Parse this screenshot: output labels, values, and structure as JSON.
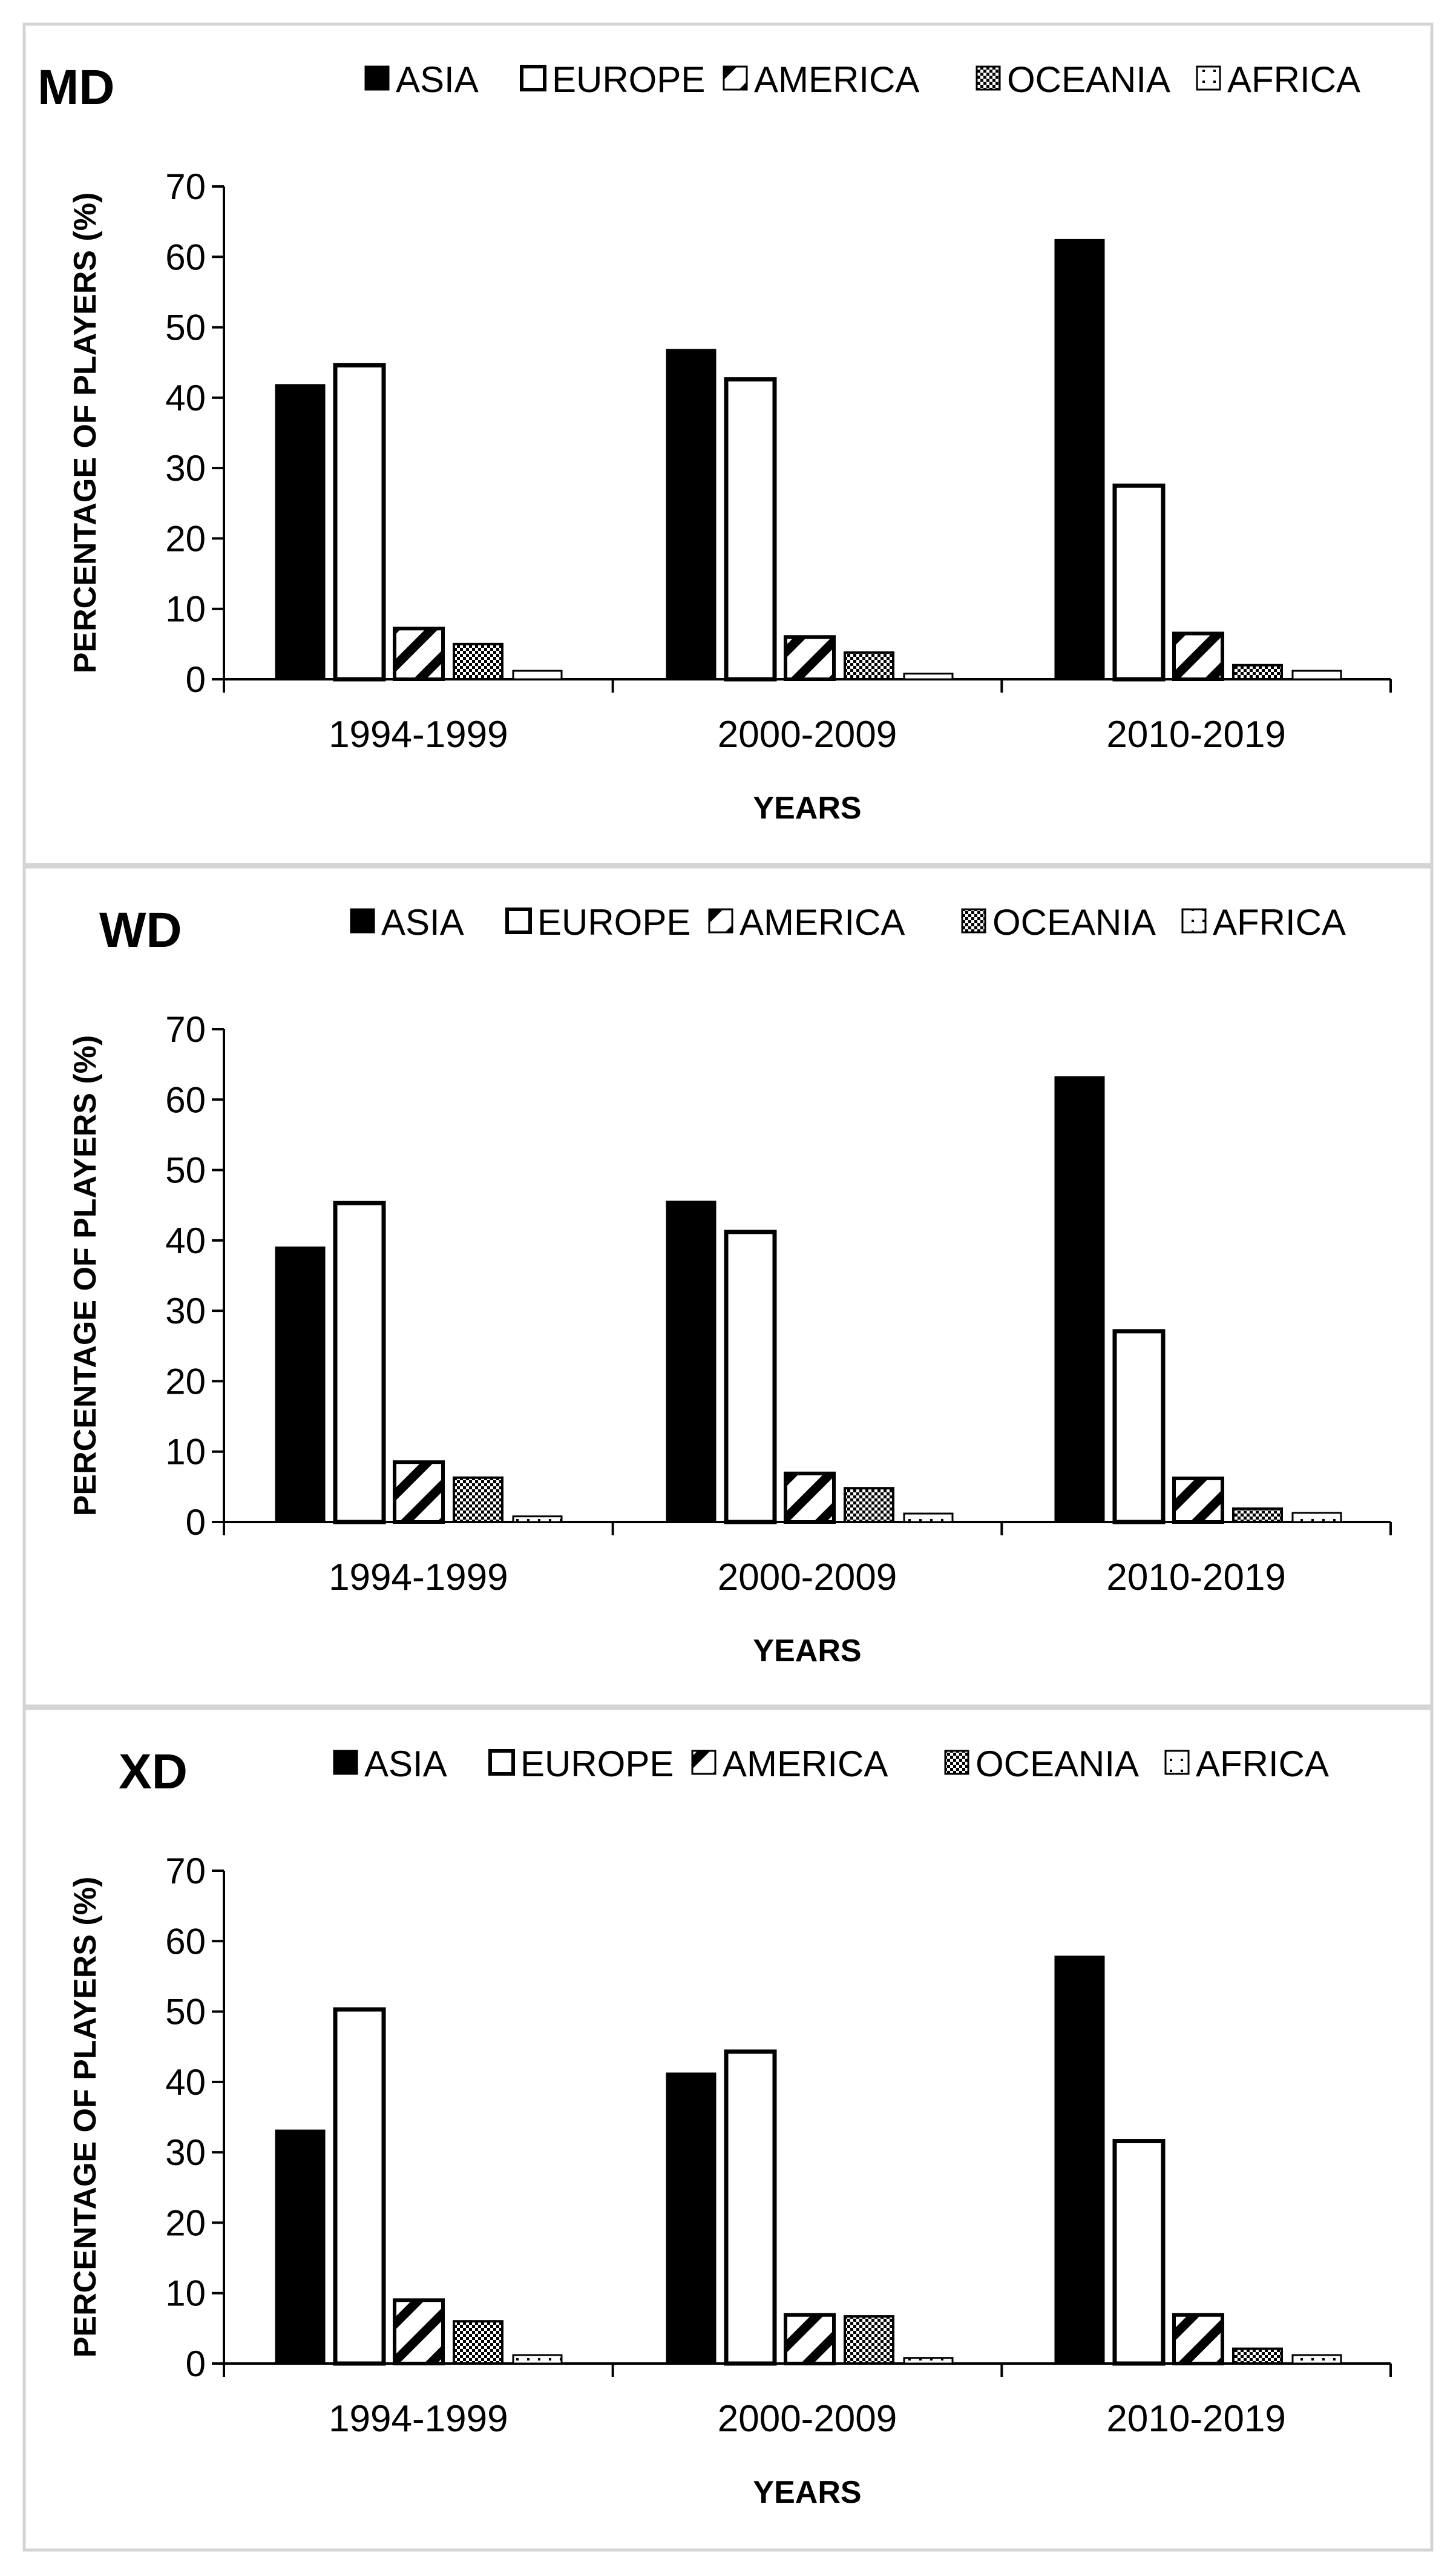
{
  "figure": {
    "series_names": [
      "ASIA",
      "EUROPE",
      "AMERICA",
      "OCEANIA",
      "AFRICA"
    ],
    "series_styles": [
      "solid",
      "outline",
      "diagonal",
      "checker",
      "dotted"
    ],
    "colors": {
      "bar_fill": "#000000",
      "bar_outline": "#000000",
      "background": "#ffffff",
      "panel_border": "#d4d4d4"
    }
  },
  "chart_data": [
    {
      "type": "bar",
      "title": "MD",
      "xlabel": "YEARS",
      "ylabel": "PERCENTAGE OF PLAYERS (%)",
      "ylim": [
        0,
        70
      ],
      "yticks": [
        "0",
        "10",
        "20",
        "30",
        "40",
        "50",
        "60",
        "70"
      ],
      "legend": "top",
      "categories": [
        "1994-1999",
        "2000-2009",
        "2010-2019"
      ],
      "series": [
        {
          "name": "ASIA",
          "values": [
            41.8,
            46.8,
            62.4
          ]
        },
        {
          "name": "EUROPE",
          "values": [
            44.6,
            42.6,
            27.5
          ]
        },
        {
          "name": "AMERICA",
          "values": [
            7.2,
            6.0,
            6.5
          ]
        },
        {
          "name": "OCEANIA",
          "values": [
            5.0,
            3.8,
            2.0
          ]
        },
        {
          "name": "AFRICA",
          "values": [
            1.2,
            0.8,
            1.2
          ]
        }
      ]
    },
    {
      "type": "bar",
      "title": "WD",
      "xlabel": "YEARS",
      "ylabel": "PERCENTAGE OF PLAYERS (%)",
      "ylim": [
        0,
        70
      ],
      "yticks": [
        "0",
        "10",
        "20",
        "30",
        "40",
        "50",
        "60",
        "70"
      ],
      "legend": "top",
      "categories": [
        "1994-1999",
        "2000-2009",
        "2010-2019"
      ],
      "series": [
        {
          "name": "ASIA",
          "values": [
            39.0,
            45.5,
            63.2
          ]
        },
        {
          "name": "EUROPE",
          "values": [
            45.3,
            41.2,
            27.1
          ]
        },
        {
          "name": "AMERICA",
          "values": [
            8.5,
            6.9,
            6.2
          ]
        },
        {
          "name": "OCEANIA",
          "values": [
            6.3,
            4.8,
            1.9
          ]
        },
        {
          "name": "AFRICA",
          "values": [
            0.8,
            1.2,
            1.3
          ]
        }
      ]
    },
    {
      "type": "bar",
      "title": "XD",
      "xlabel": "YEARS",
      "ylabel": "PERCENTAGE OF PLAYERS (%)",
      "ylim": [
        0,
        70
      ],
      "yticks": [
        "0",
        "10",
        "20",
        "30",
        "40",
        "50",
        "60",
        "70"
      ],
      "legend": "top",
      "categories": [
        "1994-1999",
        "2000-2009",
        "2010-2019"
      ],
      "series": [
        {
          "name": "ASIA",
          "values": [
            33.1,
            41.2,
            57.8
          ]
        },
        {
          "name": "EUROPE",
          "values": [
            50.3,
            44.3,
            31.6
          ]
        },
        {
          "name": "AMERICA",
          "values": [
            9.0,
            6.9,
            6.9
          ]
        },
        {
          "name": "OCEANIA",
          "values": [
            6.0,
            6.7,
            2.1
          ]
        },
        {
          "name": "AFRICA",
          "values": [
            1.2,
            0.8,
            1.2
          ]
        }
      ]
    }
  ]
}
